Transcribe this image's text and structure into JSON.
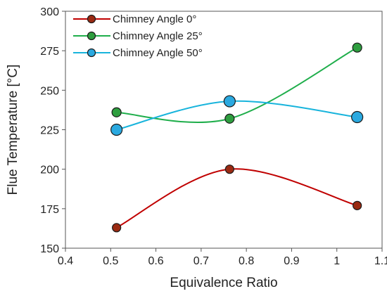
{
  "chart_data": {
    "type": "line",
    "xlabel": "Equivalence Ratio",
    "ylabel": "Flue Temperature [°C]",
    "xlim": [
      0.4,
      1.1
    ],
    "ylim": [
      150,
      300
    ],
    "xticks": [
      "0.4",
      "0.5",
      "0.6",
      "0.7",
      "0.8",
      "0.9",
      "1",
      "1.1"
    ],
    "yticks": [
      "150",
      "175",
      "200",
      "225",
      "250",
      "275",
      "300"
    ],
    "grid": false,
    "legend_position": "top-left",
    "series": [
      {
        "name": "Chimney Angle 0°",
        "line_color": "#c00000",
        "marker_color": "#9a2a12",
        "x": [
          0.513,
          0.763,
          1.045
        ],
        "y": [
          163,
          200,
          177
        ]
      },
      {
        "name": "Chimney Angle 25°",
        "line_color": "#1fae4b",
        "marker_color": "#2e9e3f",
        "x": [
          0.513,
          0.763,
          1.045
        ],
        "y": [
          236,
          232,
          277
        ]
      },
      {
        "name": "Chimney Angle 50°",
        "line_color": "#18b4dc",
        "marker_color": "#2aa9e0",
        "x": [
          0.513,
          0.763,
          1.045
        ],
        "y": [
          225,
          243,
          233
        ]
      }
    ]
  }
}
